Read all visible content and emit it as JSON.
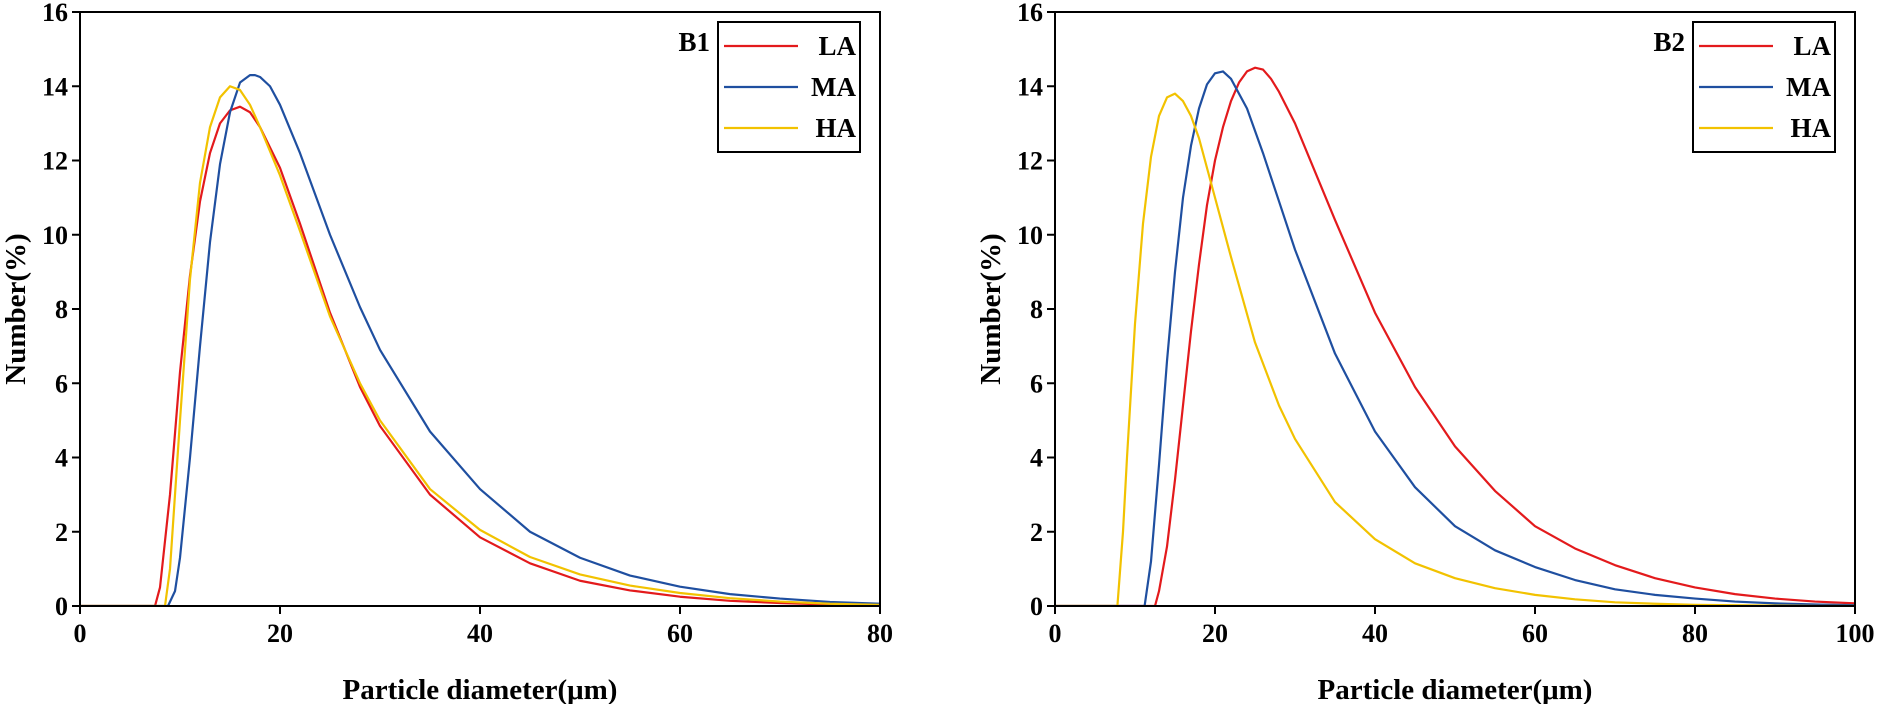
{
  "chart_data": [
    {
      "type": "line",
      "panel_label": "B1",
      "xlabel": "Particle diameter(μm)",
      "ylabel": "Number(%)",
      "xlim": [
        0,
        80
      ],
      "ylim": [
        0,
        16
      ],
      "xticks": [
        0,
        20,
        40,
        60,
        80
      ],
      "yticks": [
        0,
        2,
        4,
        6,
        8,
        10,
        12,
        14,
        16
      ],
      "legend_position": "top-right",
      "series": [
        {
          "name": "LA",
          "color": "#e31a1c",
          "x": [
            0,
            7.5,
            8,
            9,
            10,
            11,
            12,
            13,
            14,
            15,
            16,
            17,
            18,
            20,
            22,
            25,
            28,
            30,
            35,
            40,
            45,
            50,
            55,
            60,
            65,
            70,
            75,
            80
          ],
          "y": [
            0,
            0,
            0.5,
            3.0,
            6.3,
            8.9,
            10.9,
            12.2,
            13.0,
            13.35,
            13.45,
            13.3,
            12.9,
            11.8,
            10.3,
            7.9,
            5.9,
            4.85,
            3.0,
            1.85,
            1.15,
            0.68,
            0.42,
            0.25,
            0.14,
            0.08,
            0.04,
            0.02
          ]
        },
        {
          "name": "MA",
          "color": "#1f4fa0",
          "x": [
            0,
            8.8,
            9.5,
            10,
            11,
            12,
            13,
            14,
            15,
            16,
            17,
            17.5,
            18,
            19,
            20,
            22,
            25,
            28,
            30,
            35,
            40,
            45,
            50,
            55,
            60,
            65,
            70,
            75,
            80
          ],
          "y": [
            0,
            0,
            0.4,
            1.3,
            4.0,
            7.0,
            9.8,
            11.9,
            13.3,
            14.1,
            14.3,
            14.3,
            14.25,
            14.0,
            13.5,
            12.2,
            10.0,
            8.05,
            6.9,
            4.7,
            3.15,
            2.0,
            1.3,
            0.82,
            0.52,
            0.32,
            0.2,
            0.11,
            0.06
          ]
        },
        {
          "name": "HA",
          "color": "#f2c200",
          "x": [
            0,
            8.5,
            9,
            10,
            11,
            12,
            13,
            14,
            15,
            16,
            17,
            18,
            20,
            22,
            25,
            28,
            30,
            35,
            40,
            45,
            50,
            55,
            60,
            65,
            70,
            75,
            80
          ],
          "y": [
            0,
            0,
            1.0,
            5.0,
            8.8,
            11.4,
            12.9,
            13.7,
            14.0,
            13.9,
            13.5,
            12.9,
            11.6,
            10.1,
            7.8,
            6.0,
            5.0,
            3.15,
            2.05,
            1.32,
            0.85,
            0.55,
            0.35,
            0.21,
            0.12,
            0.06,
            0.03
          ]
        }
      ]
    },
    {
      "type": "line",
      "panel_label": "B2",
      "xlabel": "Particle diameter(μm)",
      "ylabel": "Number(%)",
      "xlim": [
        0,
        100
      ],
      "ylim": [
        0,
        16
      ],
      "xticks": [
        0,
        20,
        40,
        60,
        80,
        100
      ],
      "yticks": [
        0,
        2,
        4,
        6,
        8,
        10,
        12,
        14,
        16
      ],
      "legend_position": "top-right",
      "series": [
        {
          "name": "LA",
          "color": "#e31a1c",
          "x": [
            0,
            12.5,
            13,
            14,
            15,
            16,
            17,
            18,
            19,
            20,
            21,
            22,
            23,
            24,
            25,
            26,
            27,
            28,
            30,
            35,
            40,
            45,
            50,
            55,
            60,
            65,
            70,
            75,
            80,
            85,
            90,
            95,
            100
          ],
          "y": [
            0,
            0,
            0.4,
            1.6,
            3.4,
            5.4,
            7.4,
            9.2,
            10.8,
            12.0,
            12.9,
            13.6,
            14.1,
            14.4,
            14.5,
            14.45,
            14.2,
            13.85,
            13.0,
            10.4,
            7.9,
            5.9,
            4.3,
            3.1,
            2.15,
            1.55,
            1.1,
            0.75,
            0.5,
            0.32,
            0.2,
            0.12,
            0.07
          ]
        },
        {
          "name": "MA",
          "color": "#1f4fa0",
          "x": [
            0,
            11.2,
            12,
            13,
            14,
            15,
            16,
            17,
            18,
            19,
            20,
            21,
            22,
            24,
            26,
            28,
            30,
            35,
            40,
            45,
            50,
            55,
            60,
            65,
            70,
            75,
            80,
            85,
            90,
            95,
            100
          ],
          "y": [
            0,
            0,
            1.2,
            3.8,
            6.6,
            9.0,
            11.0,
            12.4,
            13.4,
            14.05,
            14.35,
            14.4,
            14.2,
            13.4,
            12.2,
            10.9,
            9.6,
            6.8,
            4.7,
            3.2,
            2.15,
            1.5,
            1.05,
            0.7,
            0.45,
            0.3,
            0.2,
            0.12,
            0.07,
            0.04,
            0.02
          ]
        },
        {
          "name": "HA",
          "color": "#f2c200",
          "x": [
            0,
            7.8,
            8.5,
            9,
            10,
            11,
            12,
            13,
            14,
            15,
            16,
            17,
            18,
            20,
            22,
            25,
            28,
            30,
            35,
            40,
            45,
            50,
            55,
            60,
            65,
            70,
            75,
            80,
            85,
            90,
            95,
            100
          ],
          "y": [
            0,
            0,
            2.0,
            4.0,
            7.6,
            10.3,
            12.1,
            13.2,
            13.7,
            13.8,
            13.6,
            13.2,
            12.6,
            11.0,
            9.4,
            7.1,
            5.4,
            4.5,
            2.8,
            1.8,
            1.15,
            0.75,
            0.48,
            0.3,
            0.18,
            0.1,
            0.06,
            0.03,
            0.02,
            0.01,
            0.0,
            0.0
          ]
        }
      ]
    }
  ]
}
